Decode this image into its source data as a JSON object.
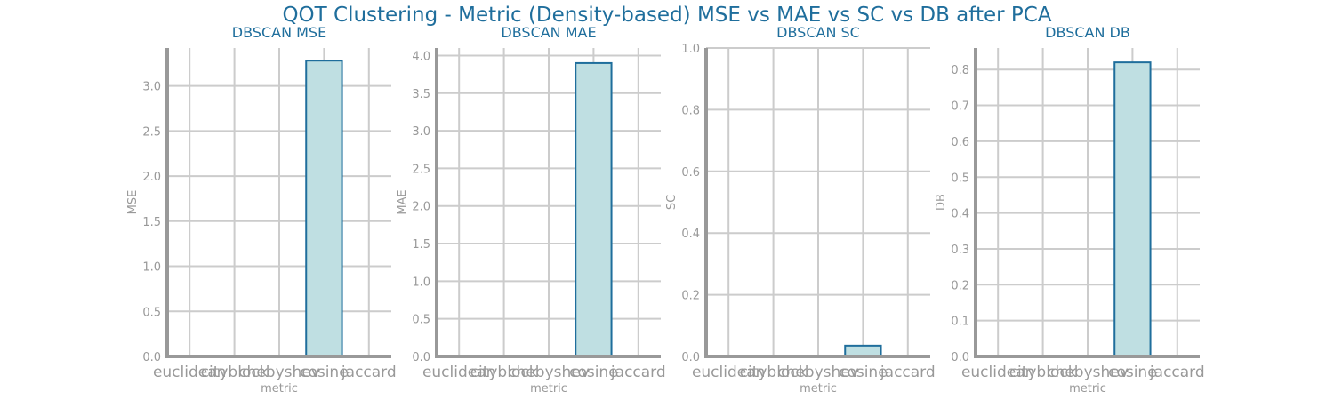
{
  "figure": {
    "title": "QOT Clustering - Metric (Density-based) MSE vs MAE vs SC vs DB after PCA",
    "colors": {
      "title": "#1f6e9c",
      "bar_fill": "#bfdfe2",
      "bar_edge": "#1f6e9c",
      "axis": "#999999",
      "grid": "#cccccc",
      "tick_text": "#999999"
    }
  },
  "chart_data": [
    {
      "type": "bar",
      "title": "DBSCAN MSE",
      "xlabel": "metric",
      "ylabel": "MSE",
      "categories": [
        "euclidean",
        "cityblock",
        "chebyshev",
        "cosine",
        "jaccard"
      ],
      "values": [
        0,
        0,
        0,
        3.28,
        0
      ],
      "ylim": [
        0,
        3.42
      ],
      "yticks": [
        "0.0",
        "0.5",
        "1.0",
        "1.5",
        "2.0",
        "2.5",
        "3.0"
      ],
      "grid": true
    },
    {
      "type": "bar",
      "title": "DBSCAN MAE",
      "xlabel": "metric",
      "ylabel": "MAE",
      "categories": [
        "euclidean",
        "cityblock",
        "chebyshev",
        "cosine",
        "jaccard"
      ],
      "values": [
        0,
        0,
        0,
        3.9,
        0
      ],
      "ylim": [
        0,
        4.1
      ],
      "yticks": [
        "0.0",
        "0.5",
        "1.0",
        "1.5",
        "2.0",
        "2.5",
        "3.0",
        "3.5",
        "4.0"
      ],
      "grid": true
    },
    {
      "type": "bar",
      "title": "DBSCAN SC",
      "xlabel": "metric",
      "ylabel": "SC",
      "categories": [
        "euclidean",
        "cityblock",
        "chebyshev",
        "cosine",
        "jaccard"
      ],
      "values": [
        0,
        0,
        0,
        0.035,
        0
      ],
      "ylim": [
        0,
        1.0
      ],
      "yticks": [
        "0.0",
        "0.2",
        "0.4",
        "0.6",
        "0.8",
        "1.0"
      ],
      "grid": true
    },
    {
      "type": "bar",
      "title": "DBSCAN DB",
      "xlabel": "metric",
      "ylabel": "DB",
      "categories": [
        "euclidean",
        "cityblock",
        "chebyshev",
        "cosine",
        "jaccard"
      ],
      "values": [
        0,
        0,
        0,
        0.82,
        0
      ],
      "ylim": [
        0,
        0.86
      ],
      "yticks": [
        "0.0",
        "0.1",
        "0.2",
        "0.3",
        "0.4",
        "0.5",
        "0.6",
        "0.7",
        "0.8"
      ],
      "grid": true
    }
  ]
}
